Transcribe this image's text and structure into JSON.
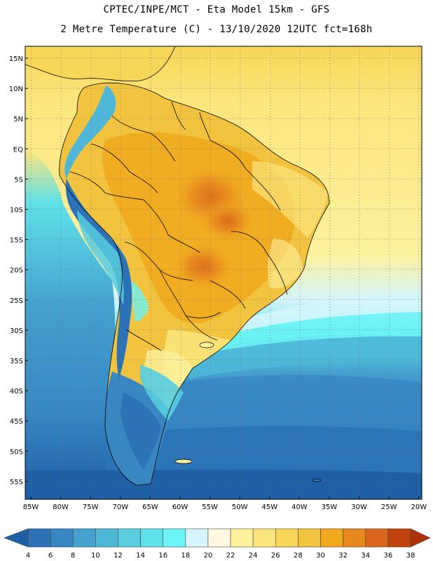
{
  "header": {
    "line1": "CPTEC/INPE/MCT  -   Eta Model 15km  -  GFS",
    "line2": "2 Metre Temperature (C) - 13/10/2020 12UTC fct=168h"
  },
  "map": {
    "lat_labels": [
      "15N",
      "10N",
      "5N",
      "EQ",
      "5S",
      "10S",
      "15S",
      "20S",
      "25S",
      "30S",
      "35S",
      "40S",
      "45S",
      "50S",
      "55S"
    ],
    "lon_labels": [
      "85W",
      "80W",
      "75W",
      "70W",
      "65W",
      "60W",
      "55W",
      "50W",
      "45W",
      "40W",
      "35W",
      "30W",
      "25W",
      "20W"
    ]
  },
  "colorbar": {
    "levels": [
      "4",
      "6",
      "8",
      "10",
      "12",
      "14",
      "16",
      "18",
      "20",
      "22",
      "24",
      "26",
      "28",
      "30",
      "32",
      "34",
      "36",
      "38"
    ],
    "colors": [
      "#1f5fa6",
      "#2b72b7",
      "#3887c3",
      "#45a1cf",
      "#4eb7d8",
      "#58cde0",
      "#5fe1ea",
      "#6cf4f6",
      "#d4f5fb",
      "#fdf8df",
      "#fdf19e",
      "#fbe67d",
      "#f8d657",
      "#f1c33e",
      "#f1a81c",
      "#e7881f",
      "#d9661a",
      "#c1420c",
      "#b03008"
    ]
  }
}
